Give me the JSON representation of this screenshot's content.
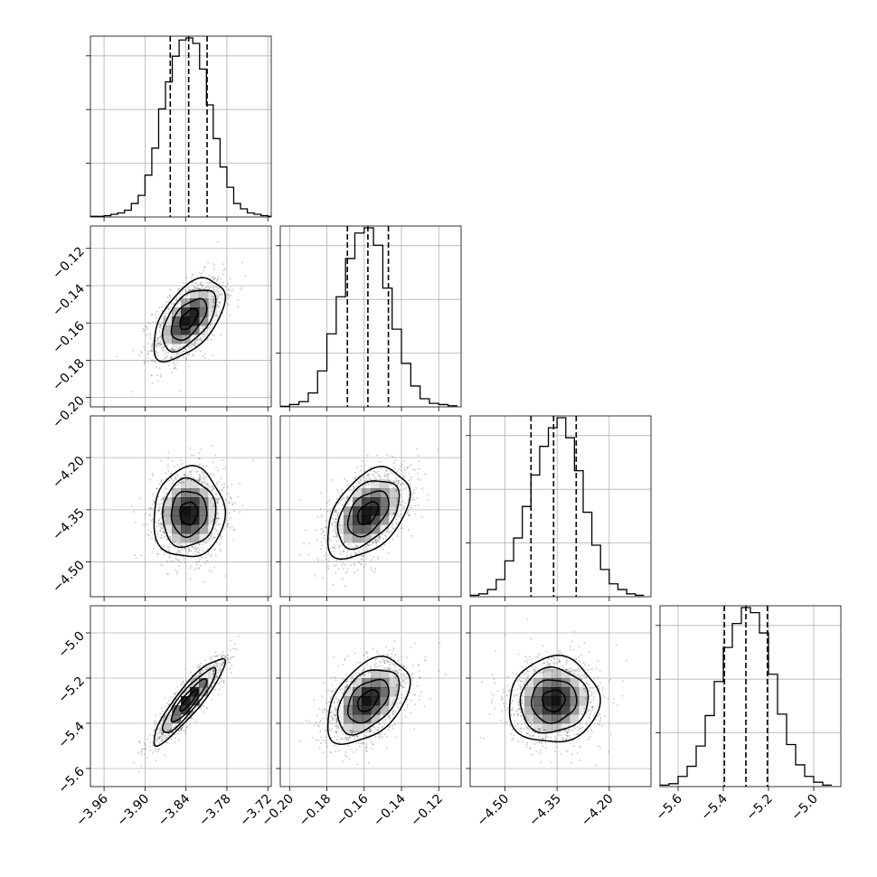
{
  "chart_data": {
    "type": "corner",
    "parameters": [
      "",
      "",
      "",
      ""
    ],
    "grid": true,
    "colors": {
      "hist": "#000000",
      "contour": "#000000",
      "grid": "#b0b0b0",
      "density": "#000000",
      "points": "#808080"
    },
    "axes": [
      {
        "range": [
          -3.98,
          -3.715
        ],
        "ticks": [
          -3.96,
          -3.9,
          -3.84,
          -3.78,
          -3.72
        ],
        "tick_labels": [
          "−3.96",
          "−3.90",
          "−3.84",
          "−3.78",
          "−3.72"
        ]
      },
      {
        "range": [
          -0.205,
          -0.108
        ],
        "ticks": [
          -0.2,
          -0.18,
          -0.16,
          -0.14,
          -0.12
        ],
        "tick_labels": [
          "−0.20",
          "−0.18",
          "−0.16",
          "−0.14",
          "−0.12"
        ]
      },
      {
        "range": [
          -4.6,
          -4.08
        ],
        "ticks": [
          -4.5,
          -4.35,
          -4.2
        ],
        "tick_labels": [
          "−4.50",
          "−4.35",
          "−4.20"
        ]
      },
      {
        "range": [
          -5.68,
          -4.88
        ],
        "ticks": [
          -5.6,
          -5.4,
          -5.2,
          -5.0
        ],
        "tick_labels": [
          "−5.6",
          "−5.4",
          "−5.2",
          "−5.0"
        ]
      }
    ],
    "quantiles": [
      [
        -3.863,
        -3.836,
        -3.809
      ],
      [
        -0.169,
        -0.158,
        -0.147
      ],
      [
        -4.425,
        -4.36,
        -4.295
      ],
      [
        -5.395,
        -5.3,
        -5.205
      ]
    ],
    "histograms": [
      {
        "bin_edges": [
          -3.98,
          -3.96,
          -3.95,
          -3.94,
          -3.93,
          -3.92,
          -3.91,
          -3.9,
          -3.89,
          -3.88,
          -3.87,
          -3.86,
          -3.85,
          -3.84,
          -3.83,
          -3.82,
          -3.81,
          -3.8,
          -3.79,
          -3.78,
          -3.77,
          -3.76,
          -3.75,
          -3.74,
          -3.73,
          -3.72,
          -3.715
        ],
        "counts": [
          1,
          2,
          4,
          6,
          10,
          20,
          32,
          62,
          102,
          160,
          200,
          238,
          262,
          265,
          257,
          219,
          166,
          116,
          74,
          44,
          20,
          12,
          6,
          4,
          2,
          1
        ]
      },
      {
        "bin_edges": [
          -0.205,
          -0.2,
          -0.195,
          -0.19,
          -0.185,
          -0.18,
          -0.175,
          -0.17,
          -0.165,
          -0.16,
          -0.155,
          -0.15,
          -0.145,
          -0.14,
          -0.135,
          -0.13,
          -0.125,
          -0.12,
          -0.115,
          -0.11
        ],
        "counts": [
          1,
          4,
          9,
          24,
          62,
          126,
          190,
          256,
          300,
          309,
          279,
          205,
          134,
          75,
          36,
          14,
          6,
          4,
          2
        ]
      },
      {
        "bin_edges": [
          -4.6,
          -4.575,
          -4.55,
          -4.525,
          -4.5,
          -4.475,
          -4.45,
          -4.425,
          -4.4,
          -4.375,
          -4.35,
          -4.325,
          -4.3,
          -4.275,
          -4.25,
          -4.225,
          -4.2,
          -4.175,
          -4.15,
          -4.125,
          -4.1
        ],
        "counts": [
          2,
          4,
          10,
          24,
          50,
          82,
          126,
          170,
          210,
          236,
          250,
          222,
          176,
          118,
          72,
          38,
          18,
          10,
          4,
          2
        ]
      },
      {
        "bin_edges": [
          -5.68,
          -5.64,
          -5.6,
          -5.56,
          -5.52,
          -5.48,
          -5.44,
          -5.4,
          -5.36,
          -5.32,
          -5.28,
          -5.24,
          -5.2,
          -5.16,
          -5.12,
          -5.08,
          -5.04,
          -5.0,
          -4.96,
          -4.92
        ],
        "counts": [
          2,
          4,
          14,
          28,
          56,
          98,
          145,
          192,
          225,
          247,
          240,
          212,
          155,
          100,
          58,
          30,
          14,
          6,
          2
        ]
      }
    ],
    "pairs": [
      {
        "x": 0,
        "y": 1,
        "mean": [
          -3.836,
          -0.158
        ],
        "sd": [
          0.026,
          0.011
        ],
        "corr": 0.55
      },
      {
        "x": 0,
        "y": 2,
        "mean": [
          -3.836,
          -4.36
        ],
        "sd": [
          0.026,
          0.065
        ],
        "corr": 0.05
      },
      {
        "x": 1,
        "y": 2,
        "mean": [
          -0.158,
          -4.36
        ],
        "sd": [
          0.011,
          0.065
        ],
        "corr": 0.45
      },
      {
        "x": 0,
        "y": 3,
        "mean": [
          -3.836,
          -5.3
        ],
        "sd": [
          0.026,
          0.095
        ],
        "corr": 0.9
      },
      {
        "x": 1,
        "y": 3,
        "mean": [
          -0.158,
          -5.3
        ],
        "sd": [
          0.011,
          0.095
        ],
        "corr": 0.45
      },
      {
        "x": 2,
        "y": 3,
        "mean": [
          -4.36,
          -5.3
        ],
        "sd": [
          0.065,
          0.095
        ],
        "corr": 0.05
      }
    ],
    "contour_levels_sigma": [
      0.5,
      1.0,
      1.5,
      2.0
    ]
  }
}
